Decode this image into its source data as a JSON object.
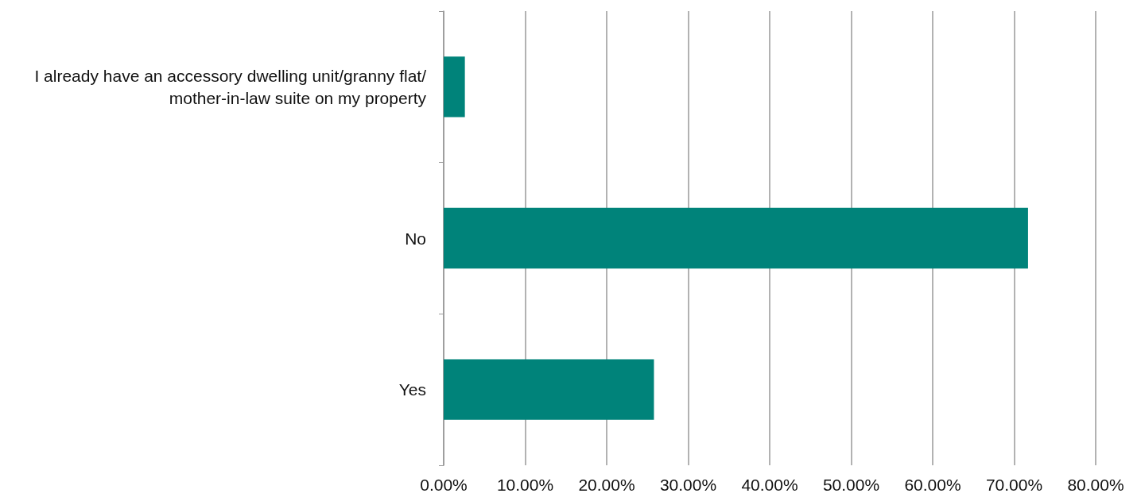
{
  "chart_data": {
    "type": "bar",
    "orientation": "horizontal",
    "categories": [
      "I already have an accessory dwelling unit/granny flat/mother-in-law suite on my property",
      "No",
      "Yes"
    ],
    "values": [
      2.6,
      71.7,
      25.8
    ],
    "color": "#00837a",
    "xlim": [
      0,
      80
    ],
    "xticks": [
      {
        "value": 0,
        "label": "0.00%"
      },
      {
        "value": 10,
        "label": "10.00%"
      },
      {
        "value": 20,
        "label": "20.00%"
      },
      {
        "value": 30,
        "label": "30.00%"
      },
      {
        "value": 40,
        "label": "40.00%"
      },
      {
        "value": 50,
        "label": "50.00%"
      },
      {
        "value": 60,
        "label": "60.00%"
      },
      {
        "value": 70,
        "label": "70.00%"
      },
      {
        "value": 80,
        "label": "80.00%"
      }
    ],
    "grid": "x"
  }
}
